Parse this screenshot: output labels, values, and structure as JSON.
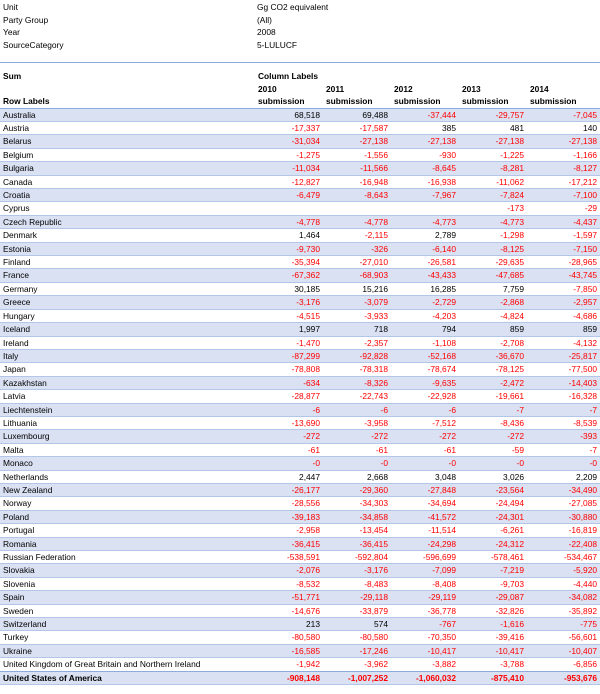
{
  "filters": [
    {
      "label": "Unit",
      "value": "Gg CO2 equivalent"
    },
    {
      "label": "Party Group",
      "value": "(All)"
    },
    {
      "label": "Year",
      "value": "2008"
    },
    {
      "label": "SourceCategory",
      "value": "5-LULUCF"
    }
  ],
  "pivot": {
    "values_label": "Sum",
    "column_labels": "Column Labels",
    "row_labels": "Row Labels",
    "columns": [
      {
        "year": "2010",
        "suffix": "submission"
      },
      {
        "year": "2011",
        "suffix": "submission"
      },
      {
        "year": "2012",
        "suffix": "submission"
      },
      {
        "year": "2013",
        "suffix": "submission"
      },
      {
        "year": "2014",
        "suffix": "submission"
      }
    ],
    "rows": [
      {
        "name": "Australia",
        "values": [
          "68,518",
          "69,488",
          "-37,444",
          "-29,757",
          "-7,045"
        ]
      },
      {
        "name": "Austria",
        "values": [
          "-17,337",
          "-17,587",
          "385",
          "481",
          "140"
        ]
      },
      {
        "name": "Belarus",
        "values": [
          "-31,034",
          "-27,138",
          "-27,138",
          "-27,138",
          "-27,138"
        ]
      },
      {
        "name": "Belgium",
        "values": [
          "-1,275",
          "-1,556",
          "-930",
          "-1,225",
          "-1,166"
        ]
      },
      {
        "name": "Bulgaria",
        "values": [
          "-11,034",
          "-11,566",
          "-8,645",
          "-8,281",
          "-8,127"
        ]
      },
      {
        "name": "Canada",
        "values": [
          "-12,827",
          "-16,948",
          "-16,938",
          "-11,062",
          "-17,212"
        ]
      },
      {
        "name": "Croatia",
        "values": [
          "-6,479",
          "-8,643",
          "-7,967",
          "-7,824",
          "-7,100"
        ]
      },
      {
        "name": "Cyprus",
        "values": [
          "",
          "",
          "",
          "-173",
          "-29"
        ]
      },
      {
        "name": "Czech Republic",
        "values": [
          "-4,778",
          "-4,778",
          "-4,773",
          "-4,773",
          "-4,437"
        ]
      },
      {
        "name": "Denmark",
        "values": [
          "1,464",
          "-2,115",
          "2,789",
          "-1,298",
          "-1,597"
        ]
      },
      {
        "name": "Estonia",
        "values": [
          "-9,730",
          "-326",
          "-6,140",
          "-8,125",
          "-7,150"
        ]
      },
      {
        "name": "Finland",
        "values": [
          "-35,394",
          "-27,010",
          "-26,581",
          "-29,635",
          "-28,965"
        ]
      },
      {
        "name": "France",
        "values": [
          "-67,362",
          "-68,903",
          "-43,433",
          "-47,685",
          "-43,745"
        ]
      },
      {
        "name": "Germany",
        "values": [
          "30,185",
          "15,216",
          "16,285",
          "7,759",
          "-7,850"
        ]
      },
      {
        "name": "Greece",
        "values": [
          "-3,176",
          "-3,079",
          "-2,729",
          "-2,868",
          "-2,957"
        ]
      },
      {
        "name": "Hungary",
        "values": [
          "-4,515",
          "-3,933",
          "-4,203",
          "-4,824",
          "-4,686"
        ]
      },
      {
        "name": "Iceland",
        "values": [
          "1,997",
          "718",
          "794",
          "859",
          "859"
        ]
      },
      {
        "name": "Ireland",
        "values": [
          "-1,470",
          "-2,357",
          "-1,108",
          "-2,708",
          "-4,132"
        ]
      },
      {
        "name": "Italy",
        "values": [
          "-87,299",
          "-92,828",
          "-52,168",
          "-36,670",
          "-25,817"
        ]
      },
      {
        "name": "Japan",
        "values": [
          "-78,808",
          "-78,318",
          "-78,674",
          "-78,125",
          "-77,500"
        ]
      },
      {
        "name": "Kazakhstan",
        "values": [
          "-634",
          "-8,326",
          "-9,635",
          "-2,472",
          "-14,403"
        ]
      },
      {
        "name": "Latvia",
        "values": [
          "-28,877",
          "-22,743",
          "-22,928",
          "-19,661",
          "-16,328"
        ]
      },
      {
        "name": "Liechtenstein",
        "values": [
          "-6",
          "-6",
          "-6",
          "-7",
          "-7"
        ]
      },
      {
        "name": "Lithuania",
        "values": [
          "-13,690",
          "-3,958",
          "-7,512",
          "-8,436",
          "-8,539"
        ]
      },
      {
        "name": "Luxembourg",
        "values": [
          "-272",
          "-272",
          "-272",
          "-272",
          "-393"
        ]
      },
      {
        "name": "Malta",
        "values": [
          "-61",
          "-61",
          "-61",
          "-59",
          "-7"
        ]
      },
      {
        "name": "Monaco",
        "values": [
          "-0",
          "-0",
          "-0",
          "-0",
          "-0"
        ]
      },
      {
        "name": "Netherlands",
        "values": [
          "2,447",
          "2,668",
          "3,048",
          "3,026",
          "2,209"
        ]
      },
      {
        "name": "New Zealand",
        "values": [
          "-26,177",
          "-29,360",
          "-27,848",
          "-23,564",
          "-34,490"
        ]
      },
      {
        "name": "Norway",
        "values": [
          "-28,556",
          "-34,303",
          "-34,694",
          "-24,494",
          "-27,085"
        ]
      },
      {
        "name": "Poland",
        "values": [
          "-39,183",
          "-34,858",
          "-41,572",
          "-24,301",
          "-30,880"
        ]
      },
      {
        "name": "Portugal",
        "values": [
          "-2,958",
          "-13,454",
          "-11,514",
          "-6,261",
          "-16,819"
        ]
      },
      {
        "name": "Romania",
        "values": [
          "-36,415",
          "-36,415",
          "-24,298",
          "-24,312",
          "-22,408"
        ]
      },
      {
        "name": "Russian Federation",
        "values": [
          "-538,591",
          "-592,804",
          "-596,699",
          "-578,461",
          "-534,467"
        ]
      },
      {
        "name": "Slovakia",
        "values": [
          "-2,076",
          "-3,176",
          "-7,099",
          "-7,219",
          "-5,920"
        ]
      },
      {
        "name": "Slovenia",
        "values": [
          "-8,532",
          "-8,483",
          "-8,408",
          "-9,703",
          "-4,440"
        ]
      },
      {
        "name": "Spain",
        "values": [
          "-51,771",
          "-29,118",
          "-29,119",
          "-29,087",
          "-34,082"
        ]
      },
      {
        "name": "Sweden",
        "values": [
          "-14,676",
          "-33,879",
          "-36,778",
          "-32,826",
          "-35,892"
        ]
      },
      {
        "name": "Switzerland",
        "values": [
          "213",
          "574",
          "-767",
          "-1,616",
          "-775"
        ]
      },
      {
        "name": "Turkey",
        "values": [
          "-80,580",
          "-80,580",
          "-70,350",
          "-39,416",
          "-56,601"
        ]
      },
      {
        "name": "Ukraine",
        "values": [
          "-16,585",
          "-17,246",
          "-10,417",
          "-10,417",
          "-10,407"
        ]
      },
      {
        "name": "United Kingdom of Great Britain and Northern Ireland",
        "values": [
          "-1,942",
          "-3,962",
          "-3,882",
          "-3,788",
          "-6,856"
        ]
      },
      {
        "name": "United States of America",
        "values": [
          "-908,148",
          "-1,007,252",
          "-1,060,032",
          "-875,410",
          "-953,676"
        ]
      }
    ]
  },
  "colors": {
    "negative": "#ff0000",
    "band": "#d9e1f2",
    "border": "#8ea9db"
  }
}
